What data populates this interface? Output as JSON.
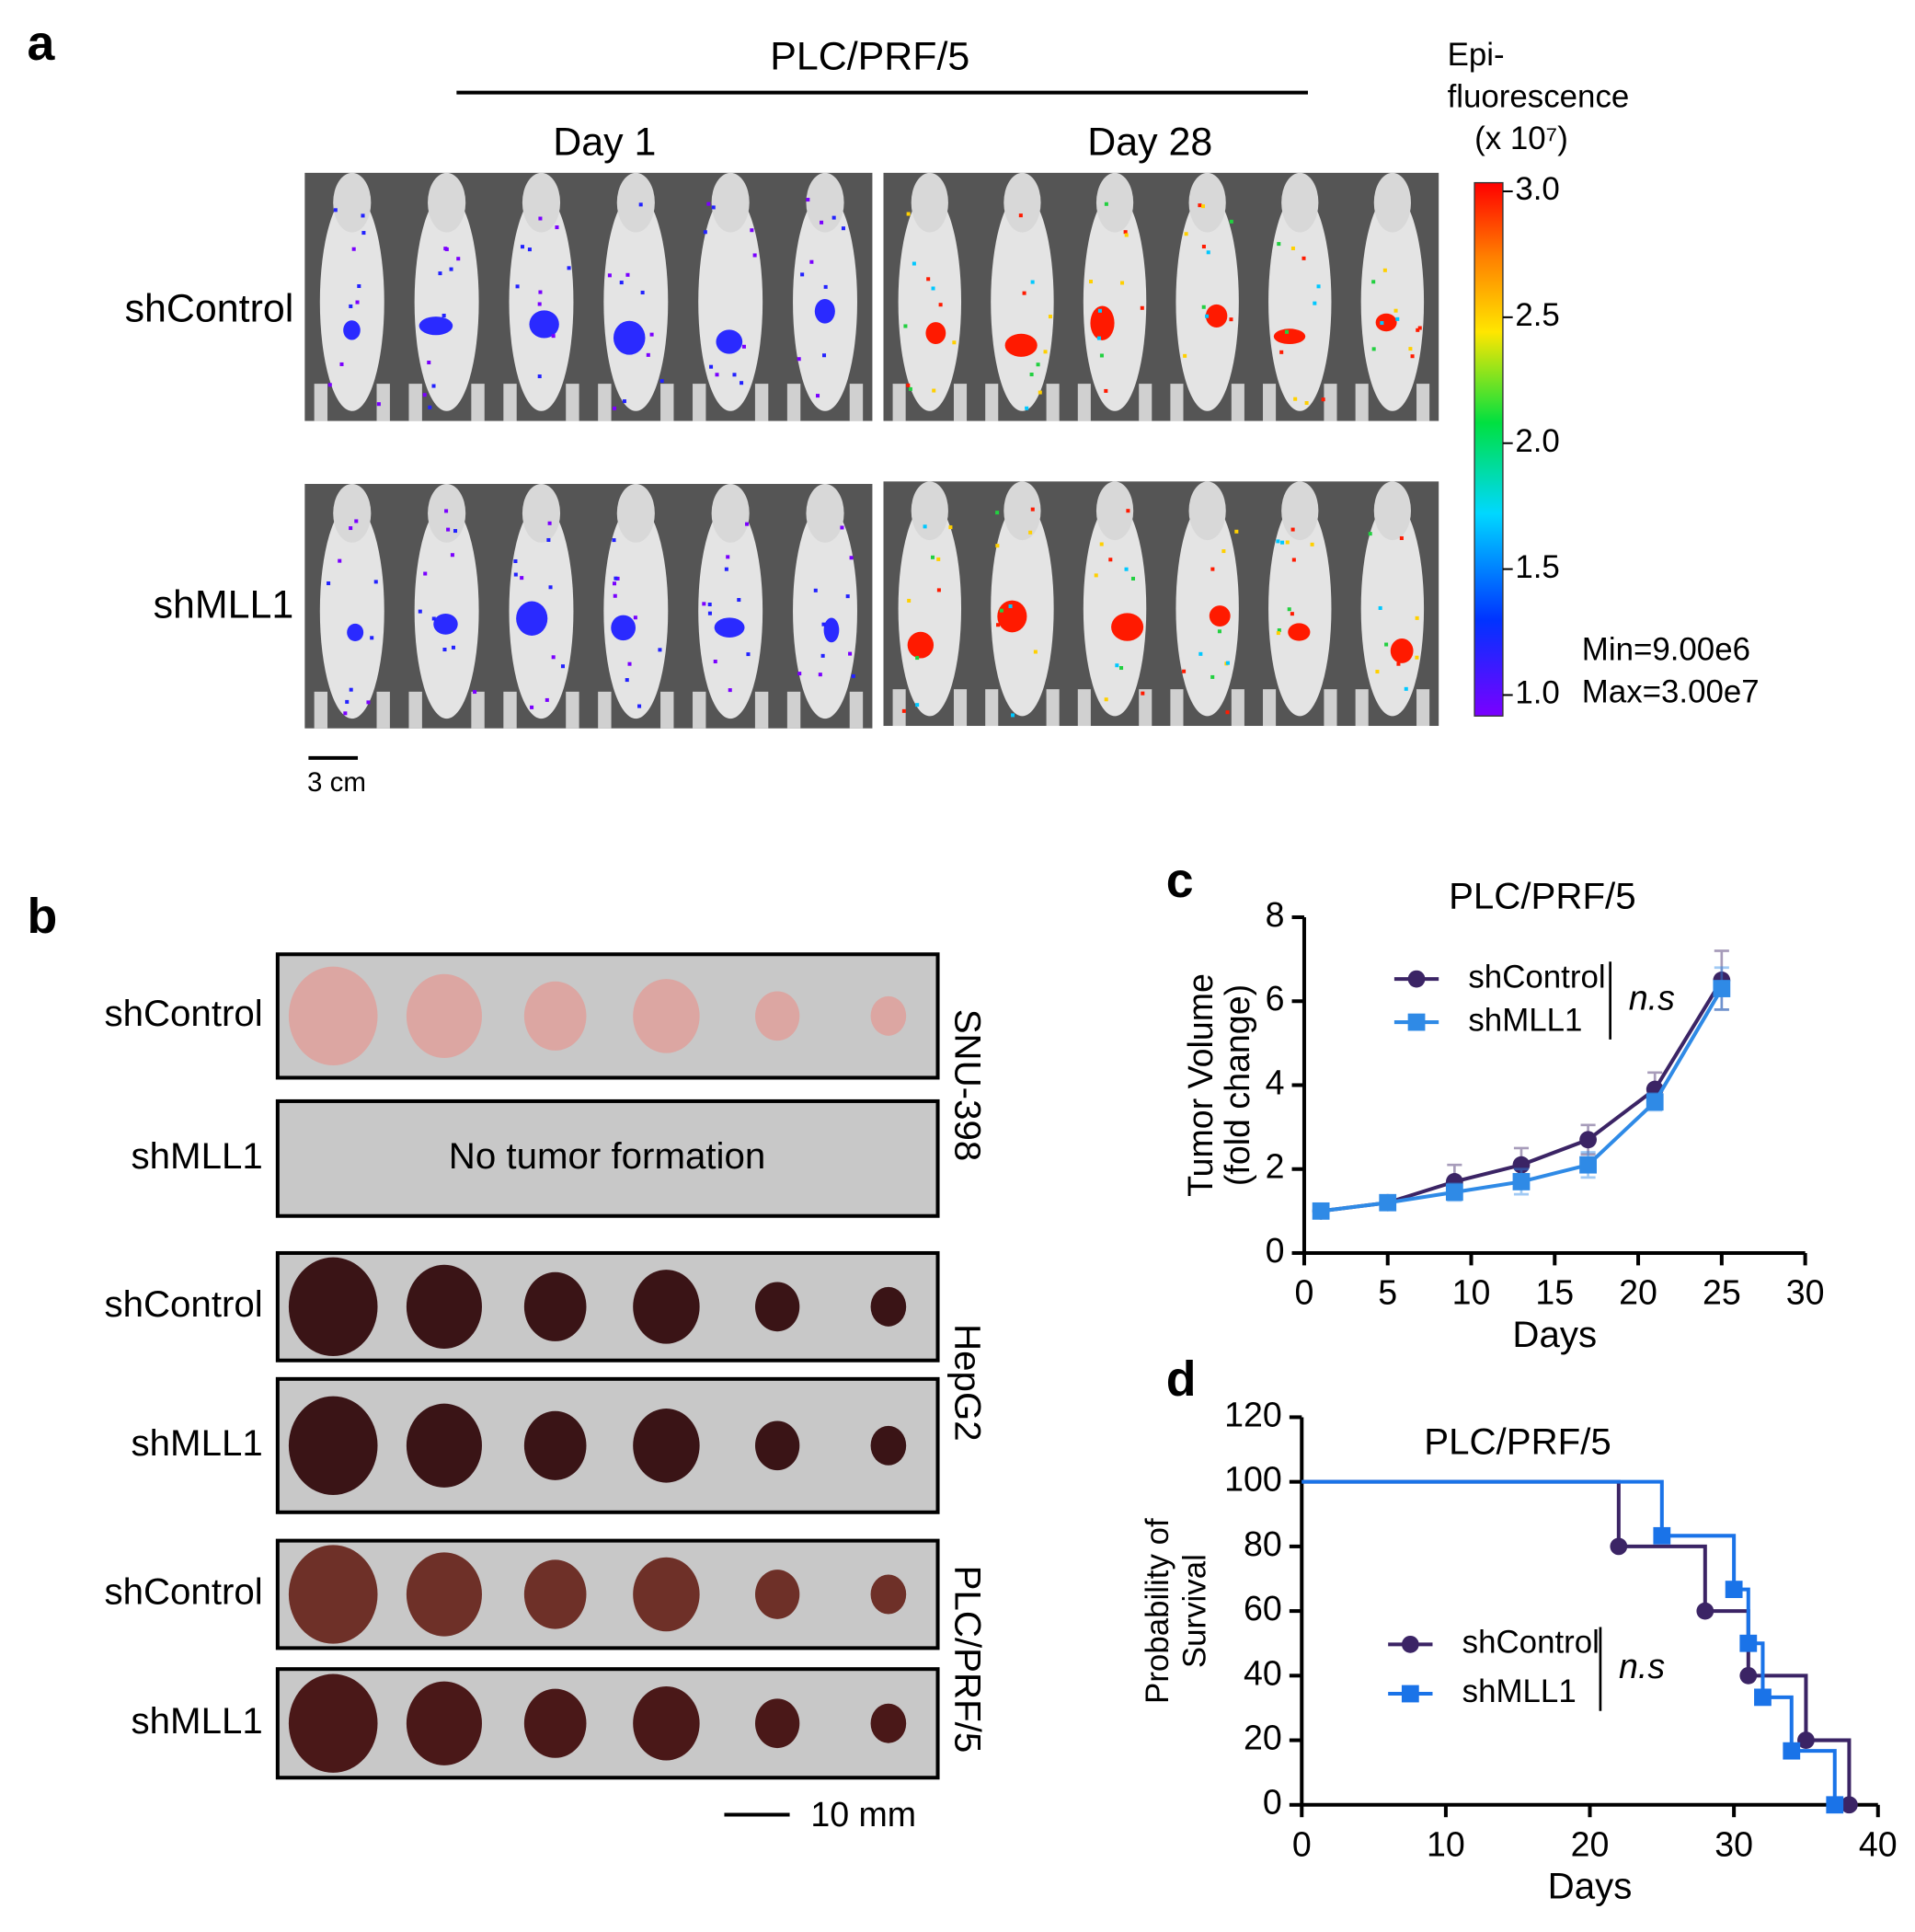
{
  "panel_a": {
    "label": "a",
    "title": "PLC/PRF/5",
    "columns": [
      "Day 1",
      "Day 28"
    ],
    "rows": [
      "shControl",
      "shMLL1"
    ],
    "scale_bar": "3 cm",
    "colorbar": {
      "title": [
        "Epi-",
        "fluorescence",
        "(x 10⁷)"
      ],
      "ticks": [
        {
          "value": 3,
          "label": "3.0"
        },
        2.5,
        {
          "value": 2,
          "label": "2.0"
        },
        1.5,
        {
          "value": 1,
          "label": "1.0"
        }
      ],
      "min": "Min=9.00e6",
      "max": "Max=3.00e7"
    }
  },
  "panel_b": {
    "label": "b",
    "groups": [
      {
        "name": "SNU-398",
        "rows": [
          {
            "label": "shControl"
          },
          {
            "label": "shMLL1",
            "note": "No tumor formation"
          }
        ]
      },
      {
        "name": "HepG2",
        "rows": [
          {
            "label": "shControl"
          },
          {
            "label": "shMLL1"
          }
        ]
      },
      {
        "name": "PLC/PRF/5",
        "rows": [
          {
            "label": "shControl"
          },
          {
            "label": "shMLL1"
          }
        ]
      }
    ],
    "scale_bar": "10 mm"
  },
  "chart_data": [
    {
      "type": "line",
      "panel_label": "c",
      "title": "PLC/PRF/5",
      "xlabel": "Days",
      "ylabel": [
        "Tumor Volume",
        "(fold change)"
      ],
      "xlim": [
        0,
        30
      ],
      "xticks": [
        0,
        5,
        10,
        15,
        20,
        25,
        30
      ],
      "ylim": [
        0,
        8
      ],
      "yticks": [
        0,
        2,
        4,
        6,
        8
      ],
      "annotation": "n.s",
      "series": [
        {
          "name": "shControl",
          "color": "#3b2465",
          "marker": "circle",
          "x": [
            1,
            5,
            9,
            13,
            17,
            21,
            25
          ],
          "values": [
            1,
            1.2,
            1.7,
            2.1,
            2.7,
            3.9,
            6.5
          ],
          "errors": [
            0.05,
            0.05,
            0.4,
            0.4,
            0.35,
            0.4,
            0.7
          ]
        },
        {
          "name": "shMLL1",
          "color": "#2f8ae6",
          "marker": "square",
          "x": [
            1,
            5,
            9,
            13,
            17,
            21,
            25
          ],
          "values": [
            1,
            1.2,
            1.45,
            1.7,
            2.1,
            3.6,
            6.3
          ],
          "errors": [
            0.05,
            0.05,
            0.2,
            0.3,
            0.3,
            0.2,
            0.5
          ]
        }
      ]
    },
    {
      "type": "step",
      "panel_label": "d",
      "title": "PLC/PRF/5",
      "xlabel": "Days",
      "ylabel": [
        "Probability of",
        "Survival"
      ],
      "xlim": [
        0,
        40
      ],
      "xticks": [
        0,
        10,
        20,
        30,
        40
      ],
      "ylim": [
        0,
        120
      ],
      "yticks": [
        0,
        20,
        40,
        60,
        80,
        100,
        120
      ],
      "annotation": "n.s",
      "series": [
        {
          "name": "shControl",
          "color": "#3b2465",
          "marker": "circle",
          "x": [
            0,
            22,
            28,
            31,
            35,
            38
          ],
          "values": [
            100,
            80,
            60,
            40,
            20,
            0
          ]
        },
        {
          "name": "shMLL1",
          "color": "#1a73e8",
          "marker": "square",
          "x": [
            0,
            25,
            30,
            31,
            32,
            34,
            37
          ],
          "values": [
            100,
            83.3,
            66.7,
            50,
            33.3,
            16.7,
            0
          ]
        }
      ]
    }
  ]
}
